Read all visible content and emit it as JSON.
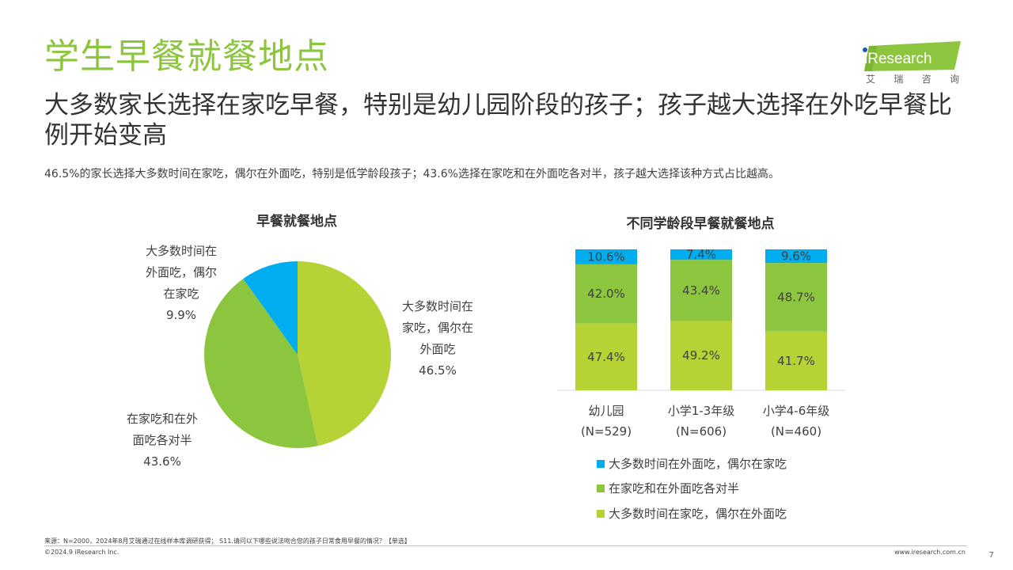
{
  "header": {
    "title": "学生早餐就餐地点",
    "headline": "大多数家长选择在家吃早餐，特别是幼儿园阶段的孩子；孩子越大选择在外吃早餐比例开始变高",
    "description": "46.5%的家长选择大多数时间在家吃，偶尔在外面吃，特别是低学龄段孩子；43.6%选择在家吃和在外面吃各对半，孩子越大选择该种方式占比越高。"
  },
  "logo": {
    "text": "iResearch",
    "cn": [
      "艾",
      "瑞",
      "咨",
      "询"
    ]
  },
  "colors": {
    "title_green": "#8cc63f",
    "light_green": "#b5d334",
    "mid_green": "#8cc63f",
    "blue": "#00aeef"
  },
  "footer": {
    "source": "来源：N=2000，2024年8月艾瑞通过在线样本库调研获得； S11.请问以下哪些说法吻合您的孩子日常食用早餐的情况？【单选】",
    "copyright": "©2024.9 iResearch Inc.",
    "website": "www.iresearch.com.cn",
    "page": "7"
  },
  "chart_data": [
    {
      "type": "pie",
      "title": "早餐就餐地点",
      "slices": [
        {
          "name": "大多数时间在家吃，偶尔在外面吃",
          "label_lines": [
            "大多数时间在",
            "家吃，偶尔在",
            "外面吃"
          ],
          "value": 46.5,
          "value_label": "46.5%",
          "color": "#b5d334"
        },
        {
          "name": "在家吃和在外面吃各对半",
          "label_lines": [
            "在家吃和在外",
            "面吃各对半"
          ],
          "value": 43.6,
          "value_label": "43.6%",
          "color": "#8cc63f"
        },
        {
          "name": "大多数时间在外面吃，偶尔在家吃",
          "label_lines": [
            "大多数时间在",
            "外面吃，偶尔",
            "在家吃"
          ],
          "value": 9.9,
          "value_label": "9.9%",
          "color": "#00aeef"
        }
      ]
    },
    {
      "type": "bar",
      "stacked": true,
      "title": "不同学龄段早餐就餐地点",
      "categories": [
        {
          "name": "幼儿园",
          "n": "(N=529)"
        },
        {
          "name": "小学1-3年级",
          "n": "(N=606)"
        },
        {
          "name": "小学4-6年级",
          "n": "(N=460)"
        }
      ],
      "series": [
        {
          "name": "大多数时间在家吃，偶尔在外面吃",
          "color": "#b5d334",
          "values": [
            47.4,
            49.2,
            41.7
          ],
          "labels": [
            "47.4%",
            "49.2%",
            "41.7%"
          ]
        },
        {
          "name": "在家吃和在外面吃各对半",
          "color": "#8cc63f",
          "values": [
            42.0,
            43.4,
            48.7
          ],
          "labels": [
            "42.0%",
            "43.4%",
            "48.7%"
          ]
        },
        {
          "name": "大多数时间在外面吃，偶尔在家吃",
          "color": "#00aeef",
          "values": [
            10.6,
            7.4,
            9.6
          ],
          "labels": [
            "10.6%",
            "7.4%",
            "9.6%"
          ]
        }
      ],
      "legend": [
        "大多数时间在外面吃，偶尔在家吃",
        "在家吃和在外面吃各对半",
        "大多数时间在家吃，偶尔在外面吃"
      ],
      "legend_colors": [
        "#00aeef",
        "#8cc63f",
        "#b5d334"
      ],
      "ylim": [
        0,
        100
      ],
      "legend_position": "bottom"
    }
  ]
}
